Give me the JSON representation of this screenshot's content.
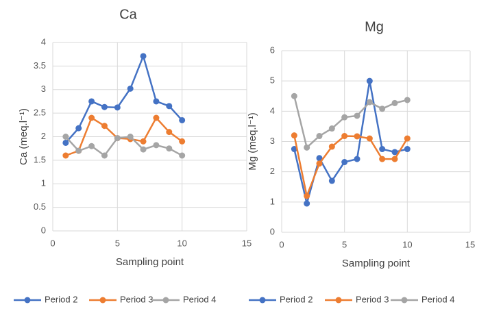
{
  "chart_data": [
    {
      "type": "line",
      "title": "Ca",
      "x_label": "Sampling point",
      "y_label": "Ca (meq.l⁻¹)",
      "x": [
        1,
        2,
        3,
        4,
        5,
        6,
        7,
        8,
        9,
        10
      ],
      "series": [
        {
          "name": "Period 2",
          "color": "#4472c4",
          "values": [
            1.87,
            2.18,
            2.75,
            2.63,
            2.62,
            3.02,
            3.71,
            2.75,
            2.65,
            2.35
          ]
        },
        {
          "name": "Period 3",
          "color": "#ed7d31",
          "values": [
            1.6,
            1.7,
            2.4,
            2.23,
            1.97,
            1.95,
            1.9,
            2.4,
            2.1,
            1.9
          ]
        },
        {
          "name": "Period 4",
          "color": "#a5a5a5",
          "values": [
            2.0,
            1.7,
            1.8,
            1.6,
            1.97,
            2.0,
            1.73,
            1.82,
            1.75,
            1.6
          ]
        }
      ],
      "xlim": [
        0,
        15
      ],
      "xticks": [
        0,
        5,
        10,
        15
      ],
      "ylim": [
        0,
        4
      ],
      "yticks": [
        0,
        0.5,
        1,
        1.5,
        2,
        2.5,
        3,
        3.5,
        4
      ],
      "grid": true,
      "legend": "bottom"
    },
    {
      "type": "line",
      "title": "Mg",
      "x_label": "Sampling point",
      "y_label": "Mg (meq.l⁻¹)",
      "x": [
        1,
        2,
        3,
        4,
        5,
        6,
        7,
        8,
        9,
        10
      ],
      "series": [
        {
          "name": "Period 2",
          "color": "#4472c4",
          "values": [
            2.75,
            0.95,
            2.45,
            1.7,
            2.32,
            2.42,
            5.0,
            2.75,
            2.65,
            2.75
          ]
        },
        {
          "name": "Period 3",
          "color": "#ed7d31",
          "values": [
            3.2,
            1.2,
            2.27,
            2.83,
            3.18,
            3.17,
            3.1,
            2.42,
            2.42,
            3.1
          ]
        },
        {
          "name": "Period 4",
          "color": "#a5a5a5",
          "values": [
            4.5,
            2.8,
            3.18,
            3.43,
            3.8,
            3.85,
            4.3,
            4.08,
            4.27,
            4.37
          ]
        }
      ],
      "xlim": [
        0,
        15
      ],
      "xticks": [
        0,
        5,
        10,
        15
      ],
      "ylim": [
        0,
        6
      ],
      "yticks": [
        0,
        1,
        2,
        3,
        4,
        5,
        6
      ],
      "grid": true,
      "legend": "bottom"
    }
  ]
}
